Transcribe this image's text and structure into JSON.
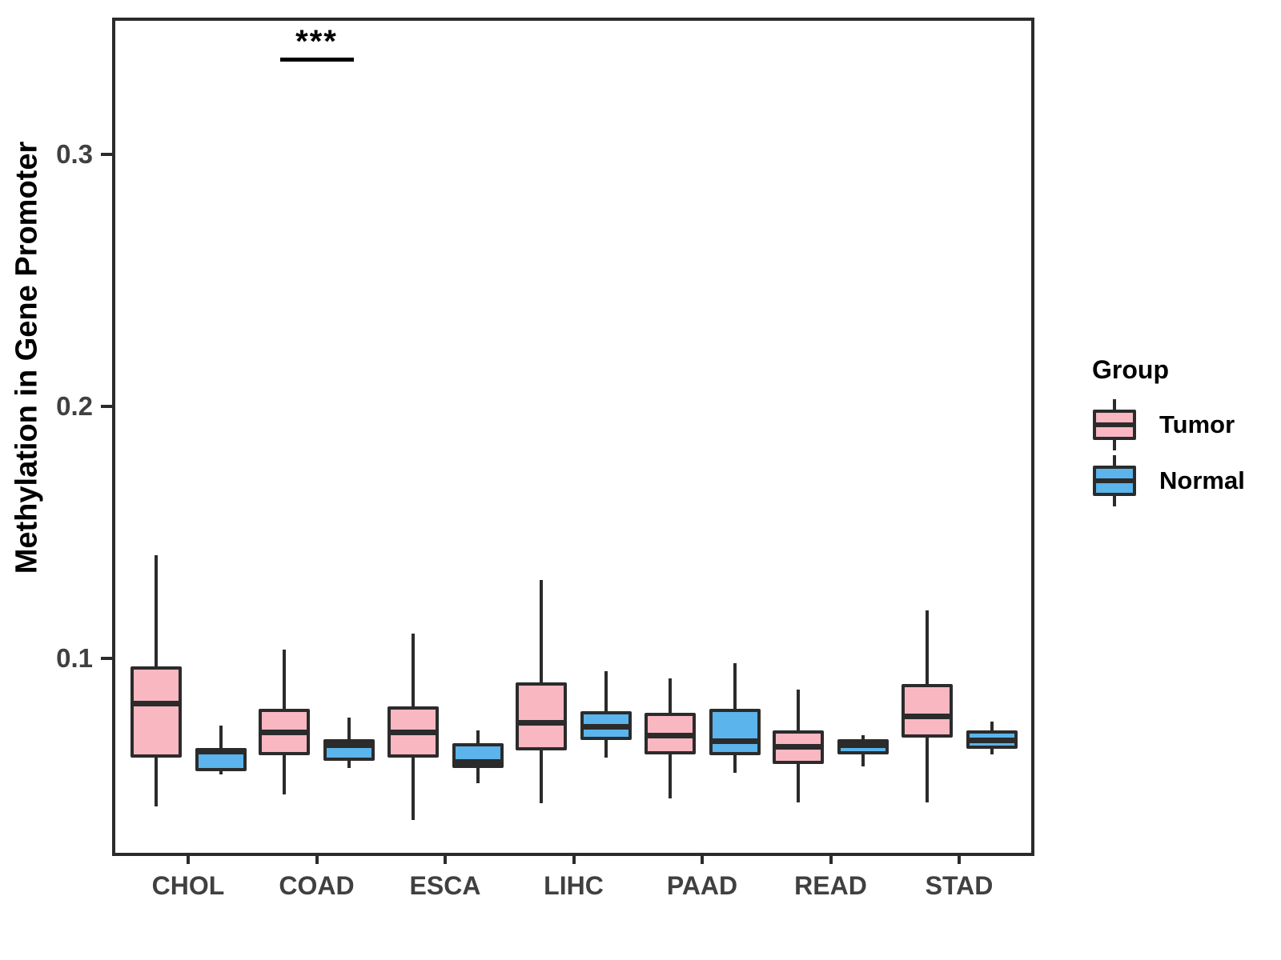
{
  "chart_data": {
    "type": "boxplot",
    "title": "",
    "xlabel": "",
    "ylabel": "Methylation in Gene Promoter",
    "categories": [
      "CHOL",
      "COAD",
      "ESCA",
      "LIHC",
      "PAAD",
      "READ",
      "STAD"
    ],
    "y_ticks": [
      0.1,
      0.2,
      0.3
    ],
    "ylim": [
      0.022,
      0.354
    ],
    "grid": "off",
    "legend": {
      "title": "Group",
      "position": "right"
    },
    "colors": {
      "tumor_fill": "#F9B7C2",
      "normal_fill": "#5BB4EB",
      "line": "#2b2b2b",
      "axis_text": "#404040",
      "annotation": "#000000"
    },
    "series": [
      {
        "name": "Tumor",
        "fill": "#F9B7C2",
        "boxes": [
          {
            "category": "CHOL",
            "low": 0.0413,
            "q1": 0.0606,
            "median": 0.0822,
            "q3": 0.0968,
            "high": 0.141
          },
          {
            "category": "COAD",
            "low": 0.046,
            "q1": 0.0615,
            "median": 0.0705,
            "q3": 0.08,
            "high": 0.1035
          },
          {
            "category": "ESCA",
            "low": 0.036,
            "q1": 0.0605,
            "median": 0.0705,
            "q3": 0.081,
            "high": 0.11
          },
          {
            "category": "LIHC",
            "low": 0.0425,
            "q1": 0.0635,
            "median": 0.0745,
            "q3": 0.0905,
            "high": 0.131
          },
          {
            "category": "PAAD",
            "low": 0.0445,
            "q1": 0.062,
            "median": 0.0695,
            "q3": 0.0785,
            "high": 0.092
          },
          {
            "category": "READ",
            "low": 0.043,
            "q1": 0.058,
            "median": 0.0648,
            "q3": 0.0715,
            "high": 0.0875
          },
          {
            "category": "STAD",
            "low": 0.043,
            "q1": 0.0685,
            "median": 0.077,
            "q3": 0.09,
            "high": 0.119
          }
        ]
      },
      {
        "name": "Normal",
        "fill": "#5BB4EB",
        "boxes": [
          {
            "category": "CHOL",
            "low": 0.054,
            "q1": 0.0552,
            "median": 0.063,
            "q3": 0.0645,
            "high": 0.0733
          },
          {
            "category": "COAD",
            "low": 0.0565,
            "q1": 0.0595,
            "median": 0.0655,
            "q3": 0.068,
            "high": 0.0765
          },
          {
            "category": "ESCA",
            "low": 0.0505,
            "q1": 0.0565,
            "median": 0.059,
            "q3": 0.0665,
            "high": 0.0715
          },
          {
            "category": "LIHC",
            "low": 0.0605,
            "q1": 0.0675,
            "median": 0.073,
            "q3": 0.079,
            "high": 0.095
          },
          {
            "category": "PAAD",
            "low": 0.0545,
            "q1": 0.0615,
            "median": 0.067,
            "q3": 0.08,
            "high": 0.098
          },
          {
            "category": "READ",
            "low": 0.057,
            "q1": 0.062,
            "median": 0.0655,
            "q3": 0.068,
            "high": 0.0695
          },
          {
            "category": "STAD",
            "low": 0.062,
            "q1": 0.064,
            "median": 0.0675,
            "q3": 0.0715,
            "high": 0.075
          }
        ]
      }
    ],
    "annotations": [
      {
        "category": "COAD",
        "label": "***"
      }
    ]
  }
}
